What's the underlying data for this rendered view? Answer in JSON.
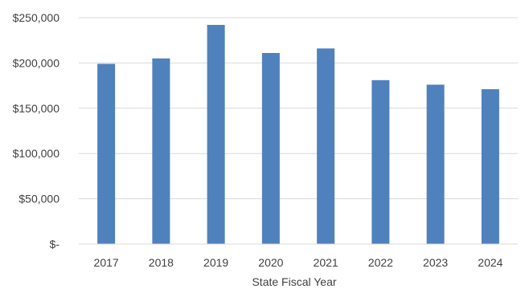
{
  "chart_data": {
    "type": "bar",
    "title": "",
    "xlabel": "State Fiscal Year",
    "ylabel": "",
    "categories": [
      "2017",
      "2018",
      "2019",
      "2020",
      "2021",
      "2022",
      "2023",
      "2024"
    ],
    "values": [
      199000,
      205000,
      242000,
      211000,
      216000,
      181000,
      176000,
      171000
    ],
    "ylim": [
      0,
      250000
    ],
    "y_ticks": [
      {
        "value": 0,
        "label": "$-"
      },
      {
        "value": 50000,
        "label": "$50,000"
      },
      {
        "value": 100000,
        "label": "$100,000"
      },
      {
        "value": 150000,
        "label": "$150,000"
      },
      {
        "value": 200000,
        "label": "$200,000"
      },
      {
        "value": 250000,
        "label": "$250,000"
      }
    ],
    "grid": true,
    "legend": "none",
    "bar_color": "#4f81bd",
    "grid_color": "#d9d9d9",
    "axis_color": "#d9d9d9",
    "text_color": "#404040"
  }
}
